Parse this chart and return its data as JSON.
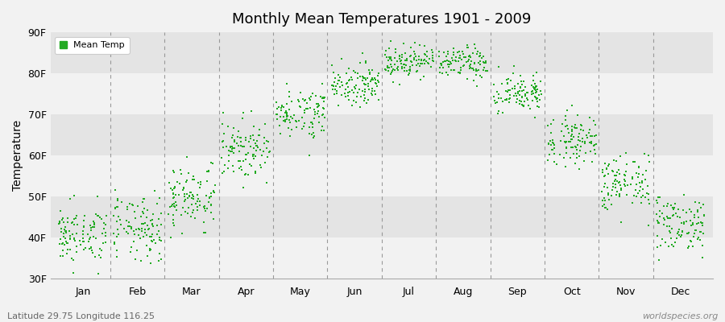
{
  "title": "Monthly Mean Temperatures 1901 - 2009",
  "ylabel": "Temperature",
  "xlabel_bottom_left": "Latitude 29.75 Longitude 116.25",
  "xlabel_bottom_right": "worldspecies.org",
  "legend_label": "Mean Temp",
  "marker_color": "#22AA22",
  "background_color": "#F2F2F2",
  "band_colors": [
    "#F2F2F2",
    "#E4E4E4"
  ],
  "yticks": [
    30,
    40,
    50,
    60,
    70,
    80,
    90
  ],
  "ytick_labels": [
    "30F",
    "40F",
    "50F",
    "60F",
    "70F",
    "80F",
    "90F"
  ],
  "ylim": [
    30,
    90
  ],
  "months": [
    "Jan",
    "Feb",
    "Mar",
    "Apr",
    "May",
    "Jun",
    "Jul",
    "Aug",
    "Sep",
    "Oct",
    "Nov",
    "Dec"
  ],
  "mean_temps_F": [
    40.5,
    42.0,
    50.0,
    61.5,
    70.5,
    77.5,
    83.0,
    82.5,
    75.0,
    64.0,
    53.0,
    43.5
  ],
  "std_temps_F": [
    3.5,
    4.0,
    4.0,
    3.5,
    3.0,
    2.5,
    2.0,
    2.0,
    2.5,
    3.0,
    3.5,
    3.5
  ],
  "n_years": 109,
  "seed": 42
}
